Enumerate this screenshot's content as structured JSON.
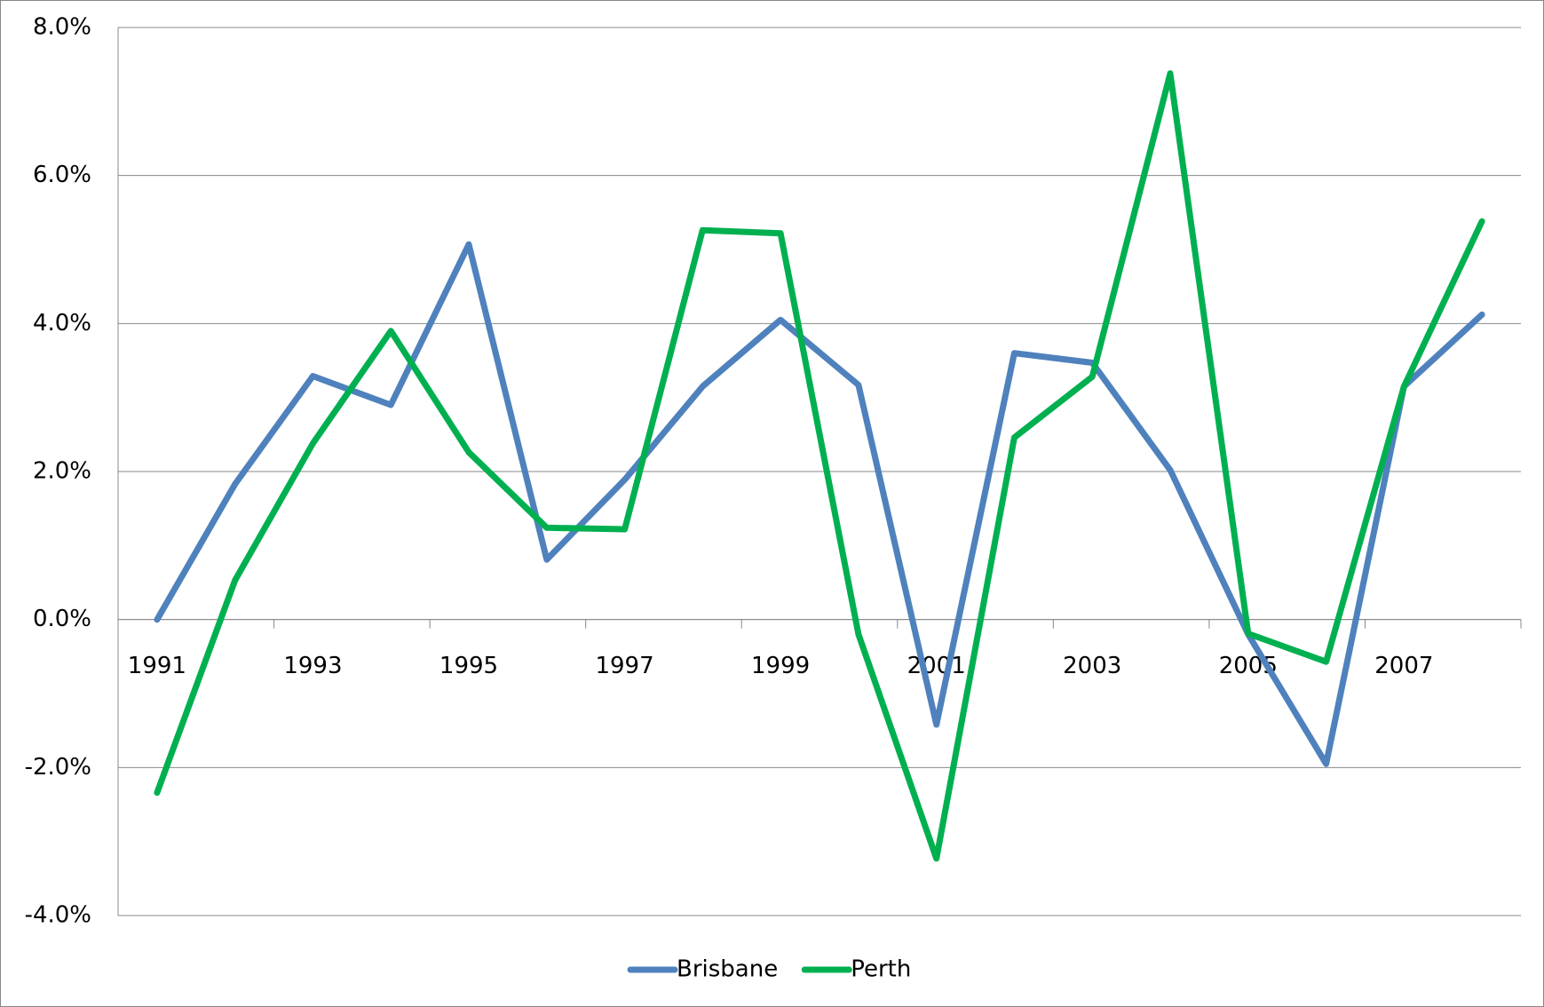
{
  "chart_data": {
    "type": "line",
    "categories": [
      "1991",
      null,
      "1993",
      null,
      "1995",
      null,
      "1997",
      null,
      "1999",
      null,
      "2001",
      null,
      "2003",
      null,
      "2005",
      null,
      "2007",
      null
    ],
    "series": [
      {
        "name": "Brisbane",
        "color": "#4f81bd",
        "values": [
          0,
          1.83,
          3.29,
          2.9,
          5.07,
          0.81,
          1.89,
          3.15,
          4.05,
          3.17,
          -1.42,
          3.6,
          3.47,
          2.02,
          -0.2,
          -1.95,
          3.15,
          4.12
        ]
      },
      {
        "name": "Perth",
        "color": "#00b050",
        "values": [
          -2.34,
          0.53,
          2.38,
          3.9,
          2.26,
          1.24,
          1.22,
          5.26,
          5.22,
          -0.2,
          -3.23,
          2.46,
          3.28,
          7.38,
          -0.19,
          -0.57,
          3.15,
          5.38
        ]
      }
    ],
    "ylim": [
      -4,
      8
    ],
    "yticks": [
      {
        "value": -4,
        "label": "-4.0%"
      },
      {
        "value": -2,
        "label": "-2.0%"
      },
      {
        "value": 0,
        "label": "0.0%"
      },
      {
        "value": 2,
        "label": "2.0%"
      },
      {
        "value": 4,
        "label": "4.0%"
      },
      {
        "value": 6,
        "label": "6.0%"
      },
      {
        "value": 8,
        "label": "8.0%"
      }
    ],
    "grid": true,
    "legend": "bottom"
  }
}
